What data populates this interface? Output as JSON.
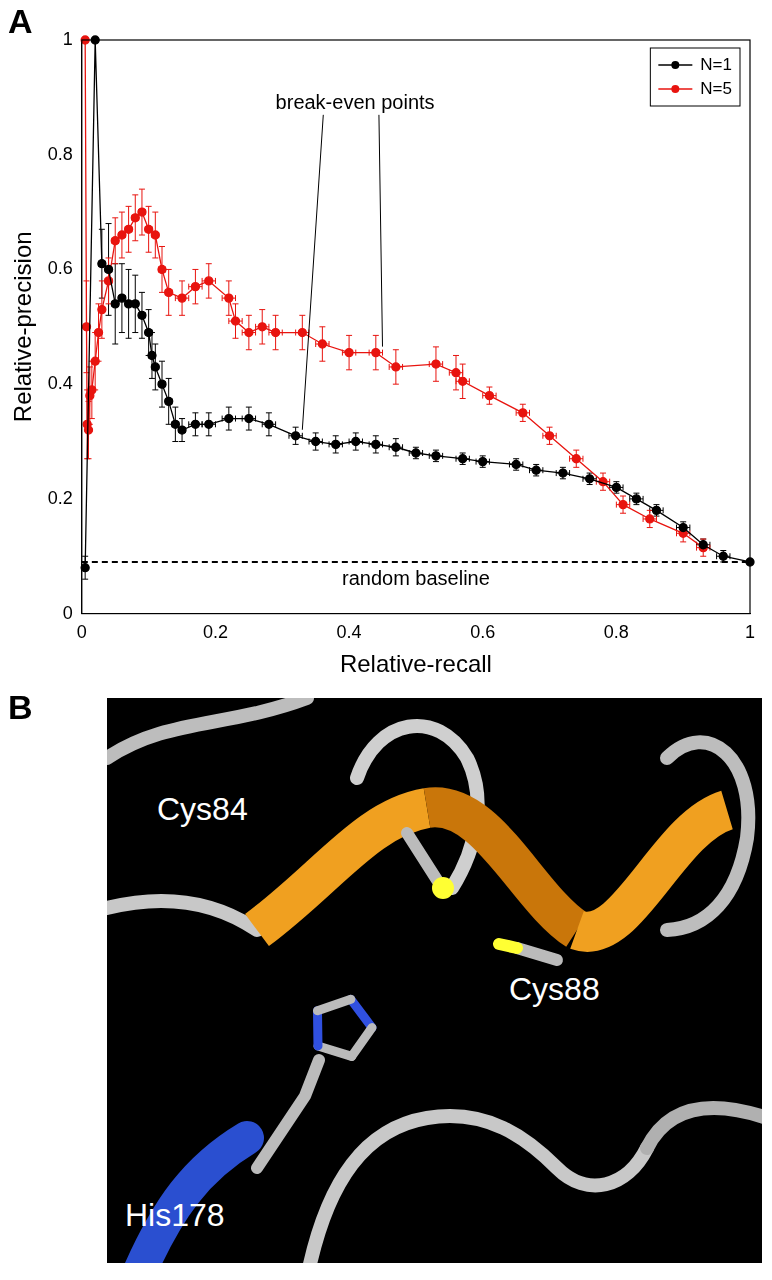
{
  "chart_data": {
    "type": "line",
    "panel_label": "A",
    "x_label": "Relative-recall",
    "y_label": "Relative-precision",
    "xlim": [
      0,
      1
    ],
    "ylim": [
      0,
      1
    ],
    "xticks": [
      0,
      0.2,
      0.4,
      0.6,
      0.8,
      1
    ],
    "yticks": [
      0,
      0.2,
      0.4,
      0.6,
      0.8,
      1
    ],
    "grid": false,
    "legend": "top-right",
    "series": [
      {
        "name": "N=1",
        "color": "#000000",
        "marker": "circle",
        "line_style": "solid",
        "x": [
          0.005,
          0.02,
          0.03,
          0.04,
          0.05,
          0.06,
          0.07,
          0.08,
          0.09,
          0.1,
          0.105,
          0.11,
          0.12,
          0.13,
          0.14,
          0.15,
          0.17,
          0.19,
          0.22,
          0.25,
          0.28,
          0.32,
          0.35,
          0.38,
          0.41,
          0.44,
          0.47,
          0.5,
          0.53,
          0.57,
          0.6,
          0.65,
          0.68,
          0.72,
          0.76,
          0.8,
          0.83,
          0.86,
          0.9,
          0.93,
          0.96,
          1.0
        ],
        "values": [
          0.08,
          1.0,
          0.61,
          0.6,
          0.54,
          0.55,
          0.54,
          0.54,
          0.52,
          0.49,
          0.45,
          0.43,
          0.4,
          0.37,
          0.33,
          0.32,
          0.33,
          0.33,
          0.34,
          0.34,
          0.33,
          0.31,
          0.3,
          0.295,
          0.3,
          0.295,
          0.29,
          0.28,
          0.275,
          0.27,
          0.265,
          0.26,
          0.25,
          0.245,
          0.235,
          0.22,
          0.2,
          0.18,
          0.15,
          0.12,
          0.1,
          0.09
        ],
        "x_errors": [
          0,
          0,
          0.005,
          0.005,
          0.005,
          0.005,
          0.005,
          0.005,
          0.005,
          0.005,
          0.005,
          0.005,
          0.005,
          0.005,
          0.005,
          0.005,
          0.01,
          0.01,
          0.01,
          0.01,
          0.01,
          0.01,
          0.01,
          0.01,
          0.01,
          0.01,
          0.01,
          0.01,
          0.01,
          0.01,
          0.01,
          0.01,
          0.01,
          0.01,
          0.01,
          0.01,
          0.01,
          0.01,
          0.01,
          0.01,
          0.01,
          0
        ],
        "y_errors": [
          0.02,
          0,
          0.06,
          0.08,
          0.07,
          0.06,
          0.06,
          0.05,
          0.04,
          0.04,
          0.04,
          0.04,
          0.04,
          0.04,
          0.03,
          0.02,
          0.02,
          0.02,
          0.02,
          0.02,
          0.02,
          0.015,
          0.015,
          0.015,
          0.015,
          0.015,
          0.015,
          0.01,
          0.01,
          0.01,
          0.01,
          0.01,
          0.01,
          0.01,
          0.01,
          0.01,
          0.01,
          0.01,
          0.01,
          0.01,
          0.01,
          0
        ]
      },
      {
        "name": "N=5",
        "color": "#e8140f",
        "marker": "circle",
        "line_style": "solid",
        "x": [
          0.005,
          0.007,
          0.008,
          0.01,
          0.012,
          0.015,
          0.02,
          0.025,
          0.03,
          0.04,
          0.05,
          0.06,
          0.07,
          0.08,
          0.09,
          0.1,
          0.11,
          0.12,
          0.13,
          0.15,
          0.17,
          0.19,
          0.22,
          0.23,
          0.25,
          0.27,
          0.29,
          0.33,
          0.36,
          0.4,
          0.44,
          0.47,
          0.53,
          0.56,
          0.57,
          0.61,
          0.66,
          0.7,
          0.74,
          0.78,
          0.81,
          0.85,
          0.9,
          0.93
        ],
        "values": [
          1.0,
          0.5,
          0.33,
          0.32,
          0.38,
          0.39,
          0.44,
          0.49,
          0.53,
          0.58,
          0.65,
          0.66,
          0.67,
          0.69,
          0.7,
          0.67,
          0.66,
          0.6,
          0.56,
          0.55,
          0.57,
          0.58,
          0.55,
          0.51,
          0.49,
          0.5,
          0.49,
          0.49,
          0.47,
          0.455,
          0.455,
          0.43,
          0.435,
          0.42,
          0.405,
          0.38,
          0.35,
          0.31,
          0.27,
          0.23,
          0.19,
          0.165,
          0.14,
          0.115
        ],
        "x_errors": [
          0.002,
          0.002,
          0.002,
          0.002,
          0.002,
          0.002,
          0.002,
          0.002,
          0.002,
          0.005,
          0.005,
          0.005,
          0.005,
          0.005,
          0.005,
          0.005,
          0.005,
          0.005,
          0.005,
          0.01,
          0.01,
          0.01,
          0.01,
          0.01,
          0.01,
          0.01,
          0.01,
          0.01,
          0.01,
          0.01,
          0.01,
          0.01,
          0.01,
          0.01,
          0.01,
          0.01,
          0.01,
          0.01,
          0.01,
          0.01,
          0.01,
          0.01,
          0.01,
          0.01
        ],
        "y_errors": [
          0,
          0.08,
          0.06,
          0.05,
          0.05,
          0.05,
          0.05,
          0.05,
          0.05,
          0.04,
          0.04,
          0.04,
          0.04,
          0.04,
          0.04,
          0.04,
          0.04,
          0.04,
          0.04,
          0.03,
          0.03,
          0.03,
          0.03,
          0.03,
          0.03,
          0.03,
          0.03,
          0.03,
          0.03,
          0.03,
          0.03,
          0.03,
          0.03,
          0.03,
          0.03,
          0.015,
          0.015,
          0.015,
          0.015,
          0.015,
          0.015,
          0.015,
          0.015,
          0.015
        ]
      }
    ],
    "annotations": [
      {
        "text": "break-even points",
        "points": [
          [
            0.33,
            0.31
          ],
          [
            0.45,
            0.455
          ]
        ]
      },
      {
        "text": "random baseline",
        "y": 0.09,
        "line_style": "dashed"
      }
    ]
  },
  "image_panel": {
    "panel_label": "B",
    "labels": [
      "Cys84",
      "Cys88",
      "His178"
    ]
  }
}
